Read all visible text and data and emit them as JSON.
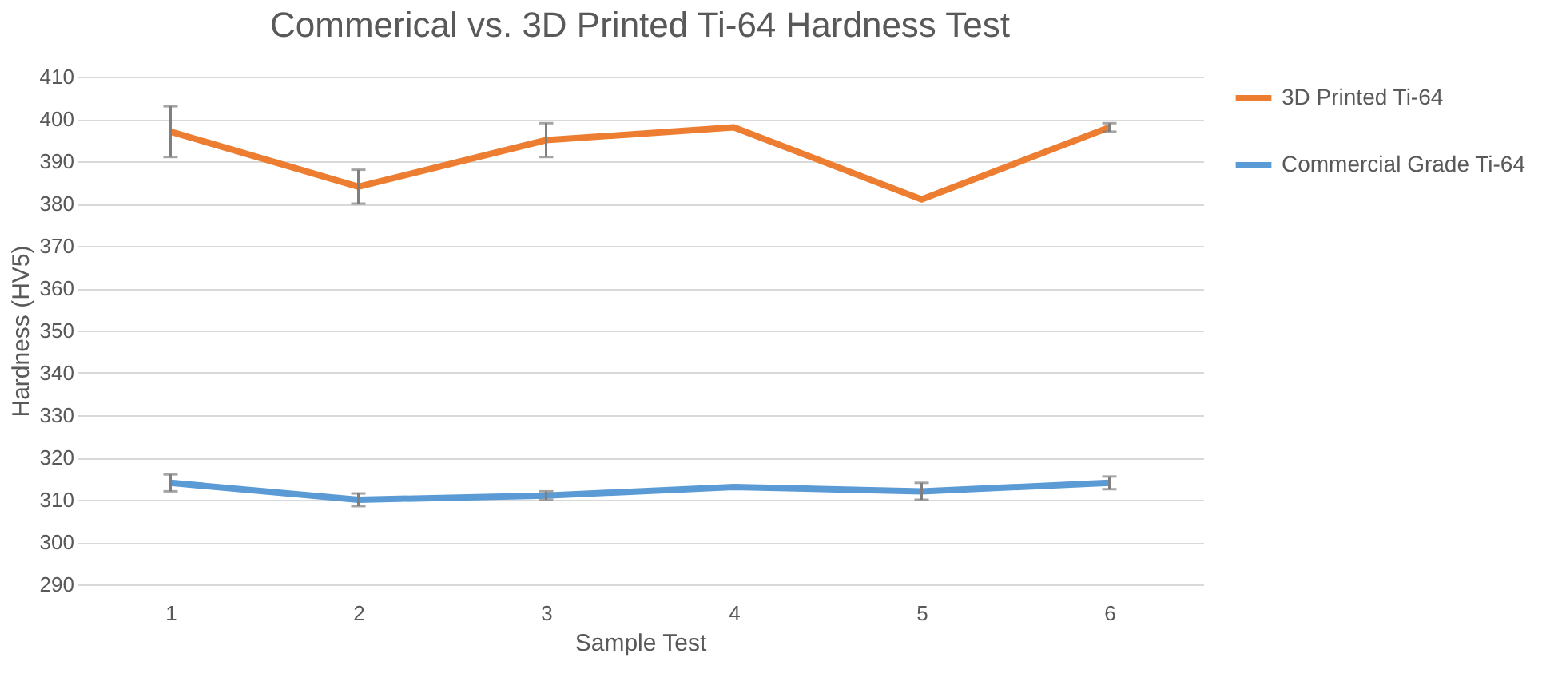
{
  "chart_data": {
    "type": "line",
    "title": "Commerical vs. 3D Printed Ti-64 Hardness Test",
    "xlabel": "Sample Test",
    "ylabel": "Hardness (HV5)",
    "categories": [
      "1",
      "2",
      "3",
      "4",
      "5",
      "6"
    ],
    "series": [
      {
        "name": "3D Printed Ti-64",
        "color": "#ed7d31",
        "values": [
          397,
          384,
          395,
          398,
          381,
          398
        ],
        "errors": [
          6,
          4,
          4,
          null,
          null,
          1
        ]
      },
      {
        "name": "Commercial Grade Ti-64",
        "color": "#5b9bd5",
        "values": [
          314,
          310,
          311,
          313,
          312,
          314
        ],
        "errors": [
          2,
          1.5,
          1,
          null,
          2,
          1.5
        ]
      }
    ],
    "ylim": [
      290,
      410
    ],
    "yticks": [
      290,
      300,
      310,
      320,
      330,
      340,
      350,
      360,
      370,
      380,
      390,
      400,
      410
    ],
    "grid": "y",
    "legend": "right",
    "marker": "none",
    "line_style": "solid"
  }
}
